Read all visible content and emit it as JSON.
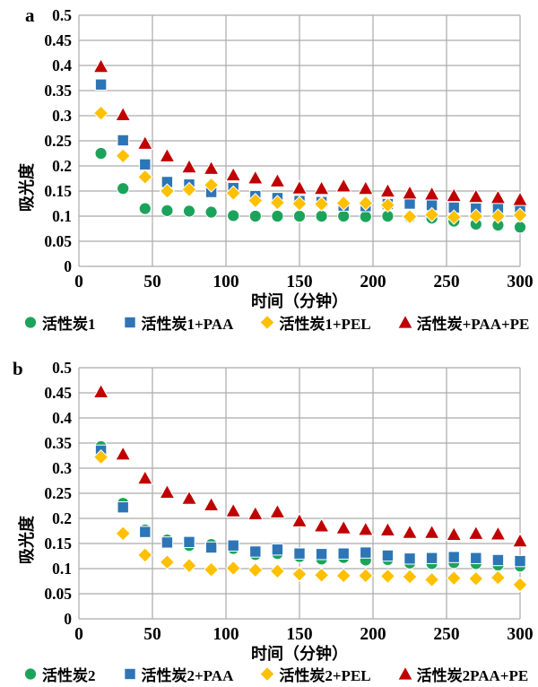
{
  "figure": {
    "description": "Two scatter charts of absorbance vs time for activated carbon adsorption",
    "background": "#ffffff",
    "grid_color": "#ababab",
    "text_color": "#000000"
  },
  "chart_data": [
    {
      "type": "scatter",
      "panel_label": "a",
      "xlabel": "时间（分钟）",
      "ylabel": "吸光度",
      "xlim": [
        0,
        300
      ],
      "ylim": [
        0,
        0.5
      ],
      "xticks": [
        0,
        50,
        100,
        150,
        200,
        250,
        300
      ],
      "yticks": [
        0,
        0.05,
        0.1,
        0.15,
        0.2,
        0.25,
        0.3,
        0.35,
        0.4,
        0.45,
        0.5
      ],
      "grid": true,
      "legend_position": "bottom",
      "x": [
        15,
        30,
        45,
        60,
        75,
        90,
        105,
        120,
        135,
        150,
        165,
        180,
        195,
        210,
        225,
        240,
        255,
        270,
        285,
        300
      ],
      "series": [
        {
          "name": "活性炭1",
          "marker": "circle",
          "color": "#1CA35B",
          "values": [
            0.225,
            0.155,
            0.115,
            0.111,
            0.11,
            0.108,
            0.101,
            0.1,
            0.1,
            0.1,
            0.1,
            0.1,
            0.099,
            0.1,
            0.098,
            0.096,
            0.09,
            0.084,
            0.082,
            0.078
          ]
        },
        {
          "name": "活性炭1+PAA",
          "marker": "square",
          "color": "#2E75B6",
          "values": [
            0.362,
            0.251,
            0.203,
            0.168,
            0.163,
            0.148,
            0.156,
            0.14,
            0.136,
            0.13,
            0.128,
            0.121,
            0.12,
            0.124,
            0.125,
            0.122,
            0.117,
            0.115,
            0.115,
            0.113
          ]
        },
        {
          "name": "活性炭1+PEL",
          "marker": "diamond",
          "color": "#FFC000",
          "values": [
            0.305,
            0.22,
            0.178,
            0.15,
            0.153,
            0.162,
            0.146,
            0.131,
            0.127,
            0.125,
            0.124,
            0.126,
            0.126,
            0.122,
            0.099,
            0.103,
            0.098,
            0.1,
            0.1,
            0.102
          ]
        },
        {
          "name": "活性炭+PAA+PE",
          "marker": "triangle",
          "color": "#C00000",
          "values": [
            0.398,
            0.302,
            0.245,
            0.22,
            0.198,
            0.195,
            0.182,
            0.176,
            0.17,
            0.156,
            0.155,
            0.16,
            0.155,
            0.15,
            0.146,
            0.144,
            0.141,
            0.139,
            0.137,
            0.133
          ]
        }
      ]
    },
    {
      "type": "scatter",
      "panel_label": "b",
      "xlabel": "时间（分钟）",
      "ylabel": "吸光度",
      "xlim": [
        0,
        300
      ],
      "ylim": [
        0,
        0.5
      ],
      "xticks": [
        0,
        50,
        100,
        150,
        200,
        250,
        300
      ],
      "yticks": [
        0,
        0.05,
        0.1,
        0.15,
        0.2,
        0.25,
        0.3,
        0.35,
        0.4,
        0.45,
        0.5
      ],
      "grid": true,
      "legend_position": "bottom",
      "x": [
        15,
        30,
        45,
        60,
        75,
        90,
        105,
        120,
        135,
        150,
        165,
        180,
        195,
        210,
        225,
        240,
        255,
        270,
        285,
        300
      ],
      "series": [
        {
          "name": "活性炭2",
          "marker": "circle",
          "color": "#1CA35B",
          "values": [
            0.343,
            0.23,
            0.177,
            0.157,
            0.146,
            0.148,
            0.14,
            0.128,
            0.13,
            0.124,
            0.119,
            0.122,
            0.117,
            0.118,
            0.111,
            0.11,
            0.112,
            0.11,
            0.107,
            0.105
          ]
        },
        {
          "name": "活性炭2+PAA",
          "marker": "square",
          "color": "#2E75B6",
          "values": [
            0.335,
            0.222,
            0.173,
            0.152,
            0.153,
            0.142,
            0.146,
            0.134,
            0.138,
            0.13,
            0.129,
            0.13,
            0.132,
            0.126,
            0.12,
            0.121,
            0.123,
            0.121,
            0.117,
            0.115
          ]
        },
        {
          "name": "活性炭2+PEL",
          "marker": "diamond",
          "color": "#FFC000",
          "values": [
            0.322,
            0.17,
            0.127,
            0.113,
            0.106,
            0.098,
            0.101,
            0.097,
            0.095,
            0.089,
            0.087,
            0.086,
            0.086,
            0.085,
            0.084,
            0.078,
            0.081,
            0.08,
            0.082,
            0.068
          ]
        },
        {
          "name": "活性炭2PAA+PE",
          "marker": "triangle",
          "color": "#C00000",
          "values": [
            0.452,
            0.328,
            0.28,
            0.252,
            0.24,
            0.227,
            0.215,
            0.209,
            0.213,
            0.195,
            0.185,
            0.181,
            0.178,
            0.177,
            0.172,
            0.172,
            0.168,
            0.17,
            0.169,
            0.155
          ]
        }
      ]
    }
  ]
}
